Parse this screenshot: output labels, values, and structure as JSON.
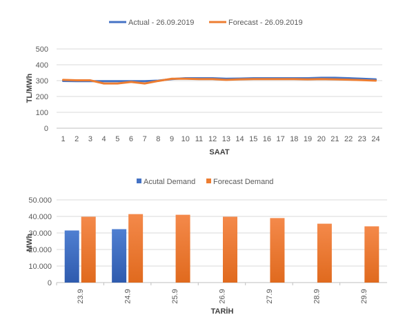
{
  "chart_data": [
    {
      "type": "line",
      "xlabel": "SAAT",
      "ylabel": "TL/MWh",
      "ylim": [
        0,
        500
      ],
      "yticks": [
        "0",
        "100",
        "200",
        "300",
        "400",
        "500"
      ],
      "grid": true,
      "legend_position": "top",
      "x": [
        1,
        2,
        3,
        4,
        5,
        6,
        7,
        8,
        9,
        10,
        11,
        12,
        13,
        14,
        15,
        16,
        17,
        18,
        19,
        20,
        21,
        22,
        23,
        24
      ],
      "series": [
        {
          "name": "Actual - 26.09.2019",
          "color": "#4472C4",
          "values": [
            298,
            297,
            297,
            297,
            297,
            297,
            297,
            300,
            310,
            315,
            315,
            315,
            312,
            313,
            315,
            315,
            315,
            315,
            315,
            318,
            318,
            315,
            312,
            308
          ]
        },
        {
          "name": "Forecast - 26.09.2019",
          "color": "#ED7D31",
          "values": [
            305,
            302,
            302,
            282,
            282,
            292,
            282,
            298,
            312,
            312,
            310,
            310,
            305,
            308,
            310,
            310,
            310,
            310,
            308,
            310,
            308,
            306,
            303,
            300
          ]
        }
      ]
    },
    {
      "type": "bar",
      "xlabel": "TARİH",
      "ylabel": "MWh",
      "ylim": [
        0,
        50000
      ],
      "yticks": [
        "0",
        "10.000",
        "20.000",
        "30.000",
        "40.000",
        "50.000"
      ],
      "grid": true,
      "legend_position": "top",
      "categories": [
        "23.9",
        "24.9",
        "25.9",
        "26.9",
        "27.9",
        "28.9",
        "29.9"
      ],
      "series": [
        {
          "name": "Acutal Demand",
          "color": "#4472C4",
          "values": [
            31500,
            32300,
            null,
            null,
            null,
            null,
            null
          ]
        },
        {
          "name": "Forecast Demand",
          "color": "#ED7D31",
          "values": [
            39800,
            41400,
            41000,
            39800,
            39000,
            35600,
            34000
          ]
        }
      ]
    }
  ]
}
